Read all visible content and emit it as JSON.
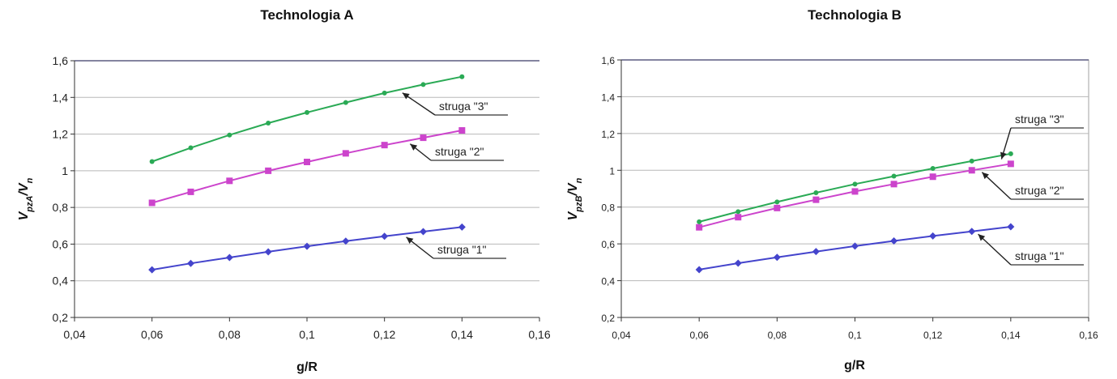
{
  "chart_data": [
    {
      "type": "line",
      "title": "Technologia A",
      "xlabel": "g/R",
      "ylabel": "V",
      "ylabel_sub": "pzA",
      "ylabel_den": "V",
      "ylabel_den_sub": "n",
      "xlim": [
        0.04,
        0.16
      ],
      "ylim": [
        0.2,
        1.6
      ],
      "x_ticks": [
        0.04,
        0.06,
        0.08,
        0.1,
        0.12,
        0.14,
        0.16
      ],
      "x_tick_labels": [
        "0,04",
        "0,06",
        "0,08",
        "0,1",
        "0,12",
        "0,14",
        "0,16"
      ],
      "y_ticks": [
        0.2,
        0.4,
        0.6,
        0.8,
        1.0,
        1.2,
        1.4,
        1.6
      ],
      "y_tick_labels": [
        "0,2",
        "0,4",
        "0,6",
        "0,8",
        "1",
        "1,2",
        "1,4",
        "1,6"
      ],
      "grid": "horizontal",
      "x": [
        0.06,
        0.07,
        0.08,
        0.09,
        0.1,
        0.11,
        0.12,
        0.13,
        0.14
      ],
      "series": [
        {
          "values": [
            0.46,
            0.495,
            0.527,
            0.558,
            0.588,
            0.616,
            0.643,
            0.668,
            0.693
          ],
          "color": "#4444cc",
          "marker": "diamond"
        },
        {
          "values": [
            0.825,
            0.885,
            0.945,
            1.0,
            1.048,
            1.095,
            1.14,
            1.18,
            1.22
          ],
          "color": "#cc44cc",
          "marker": "square"
        },
        {
          "values": [
            1.05,
            1.125,
            1.195,
            1.26,
            1.318,
            1.372,
            1.424,
            1.47,
            1.513
          ],
          "color": "#2aaa55",
          "marker": "dot"
        }
      ],
      "annotations": [
        {
          "text": "struga \"3\"",
          "series": 2,
          "at_x": 0.124
        },
        {
          "text": "struga \"2\"",
          "series": 1,
          "at_x": 0.126
        },
        {
          "text": "struga \"1\"",
          "series": 0,
          "at_x": 0.125
        }
      ]
    },
    {
      "type": "line",
      "title": "Technologia B",
      "xlabel": "g/R",
      "ylabel": "V",
      "ylabel_sub": "pzB",
      "ylabel_den": "V",
      "ylabel_den_sub": "n",
      "xlim": [
        0.04,
        0.16
      ],
      "ylim": [
        0.2,
        1.6
      ],
      "x_ticks": [
        0.04,
        0.06,
        0.08,
        0.1,
        0.12,
        0.14,
        0.16
      ],
      "x_tick_labels": [
        "0,04",
        "0,06",
        "0,08",
        "0,1",
        "0,12",
        "0,14",
        "0,16"
      ],
      "y_ticks": [
        0.2,
        0.4,
        0.6,
        0.8,
        1.0,
        1.2,
        1.4,
        1.6
      ],
      "y_tick_labels": [
        "0,2",
        "0,4",
        "0,6",
        "0,8",
        "1",
        "1,2",
        "1,4",
        "1,6"
      ],
      "grid": "horizontal",
      "x": [
        0.06,
        0.07,
        0.08,
        0.09,
        0.1,
        0.11,
        0.12,
        0.13,
        0.14
      ],
      "series": [
        {
          "values": [
            0.46,
            0.495,
            0.527,
            0.558,
            0.588,
            0.616,
            0.643,
            0.668,
            0.693
          ],
          "color": "#4444cc",
          "marker": "diamond"
        },
        {
          "values": [
            0.69,
            0.745,
            0.795,
            0.84,
            0.885,
            0.925,
            0.965,
            1.0,
            1.035
          ],
          "color": "#cc44cc",
          "marker": "square"
        },
        {
          "values": [
            0.72,
            0.775,
            0.828,
            0.878,
            0.925,
            0.968,
            1.01,
            1.05,
            1.09
          ],
          "color": "#2aaa55",
          "marker": "dot"
        }
      ],
      "annotations": [
        {
          "text": "struga \"3\"",
          "series": 2,
          "at_x": 0.137
        },
        {
          "text": "struga \"2\"",
          "series": 1,
          "at_x": 0.132
        },
        {
          "text": "struga \"1\"",
          "series": 0,
          "at_x": 0.131
        }
      ]
    }
  ]
}
